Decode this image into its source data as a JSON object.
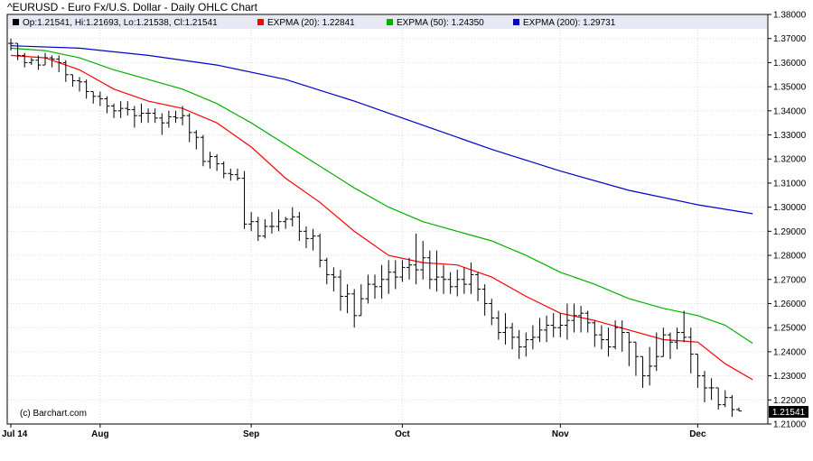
{
  "chart_data": {
    "type": "line",
    "title": "^EURUSD - Euro Fx/U.S. Dollar - Daily OHLC Chart",
    "legend": [
      {
        "label": "Op:1.21541, Hi:1.21693, Lo:1.21538, Cl:1.21541",
        "color": "#000000"
      },
      {
        "label": "EXPMA (20): 1.22841",
        "color": "#ff0000"
      },
      {
        "label": "EXPMA (50): 1.24350",
        "color": "#00b000"
      },
      {
        "label": "EXPMA (200): 1.29731",
        "color": "#0000cc"
      }
    ],
    "legend_placement": "top-left",
    "credit": "(c) Barchart.com",
    "last_value_label": "1.21541",
    "xlabel": "",
    "ylabel": "",
    "ylim": [
      1.21,
      1.38
    ],
    "y_ticks": [
      "1.21000",
      "1.22000",
      "1.23000",
      "1.24000",
      "1.25000",
      "1.26000",
      "1.27000",
      "1.28000",
      "1.29000",
      "1.30000",
      "1.31000",
      "1.32000",
      "1.33000",
      "1.34000",
      "1.35000",
      "1.36000",
      "1.37000",
      "1.38000"
    ],
    "x_ticks": [
      {
        "label": "Jul 14",
        "index": 0
      },
      {
        "label": "Aug",
        "index": 13
      },
      {
        "label": "Sep",
        "index": 35
      },
      {
        "label": "Oct",
        "index": 57
      },
      {
        "label": "Nov",
        "index": 80
      },
      {
        "label": "Dec",
        "index": 100
      }
    ],
    "grid": true,
    "bars_close": [
      1.368,
      1.363,
      1.36,
      1.361,
      1.359,
      1.362,
      1.3615,
      1.36,
      1.355,
      1.3525,
      1.352,
      1.348,
      1.346,
      1.345,
      1.342,
      1.34,
      1.341,
      1.3405,
      1.338,
      1.339,
      1.339,
      1.337,
      1.335,
      1.3375,
      1.337,
      1.338,
      1.331,
      1.329,
      1.319,
      1.321,
      1.318,
      1.314,
      1.3135,
      1.312,
      1.293,
      1.294,
      1.288,
      1.292,
      1.292,
      1.294,
      1.295,
      1.296,
      1.29,
      1.287,
      1.288,
      1.278,
      1.272,
      1.271,
      1.263,
      1.264,
      1.255,
      1.262,
      1.268,
      1.267,
      1.27,
      1.273,
      1.271,
      1.275,
      1.276,
      1.274,
      1.279,
      1.27,
      1.271,
      1.27,
      1.267,
      1.27,
      1.268,
      1.272,
      1.266,
      1.26,
      1.254,
      1.248,
      1.25,
      1.246,
      1.242,
      1.245,
      1.246,
      1.249,
      1.251,
      1.25,
      1.251,
      1.253,
      1.255,
      1.256,
      1.252,
      1.247,
      1.245,
      1.242,
      1.25,
      1.248,
      1.244,
      1.238,
      1.23,
      1.234,
      1.238,
      1.247,
      1.244,
      1.248,
      1.246,
      1.239,
      1.23,
      1.225,
      1.225,
      1.218,
      1.221,
      1.216,
      1.2154
    ],
    "bars_high": [
      1.37,
      1.368,
      1.364,
      1.362,
      1.363,
      1.364,
      1.363,
      1.363,
      1.361,
      1.354,
      1.354,
      1.353,
      1.348,
      1.348,
      1.346,
      1.343,
      1.344,
      1.344,
      1.342,
      1.343,
      1.341,
      1.341,
      1.339,
      1.34,
      1.34,
      1.342,
      1.339,
      1.332,
      1.33,
      1.323,
      1.322,
      1.319,
      1.316,
      1.316,
      1.315,
      1.298,
      1.296,
      1.295,
      1.298,
      1.299,
      1.296,
      1.3,
      1.298,
      1.292,
      1.291,
      1.289,
      1.279,
      1.275,
      1.274,
      1.268,
      1.266,
      1.268,
      1.272,
      1.272,
      1.276,
      1.278,
      1.278,
      1.278,
      1.279,
      1.289,
      1.286,
      1.282,
      1.282,
      1.276,
      1.273,
      1.274,
      1.275,
      1.277,
      1.273,
      1.268,
      1.262,
      1.257,
      1.256,
      1.252,
      1.249,
      1.248,
      1.251,
      1.254,
      1.255,
      1.256,
      1.256,
      1.26,
      1.26,
      1.259,
      1.257,
      1.253,
      1.251,
      1.25,
      1.253,
      1.253,
      1.248,
      1.244,
      1.238,
      1.242,
      1.248,
      1.25,
      1.248,
      1.25,
      1.257,
      1.25,
      1.235,
      1.232,
      1.229,
      1.225,
      1.224,
      1.222,
      1.2169
    ],
    "bars_low": [
      1.365,
      1.361,
      1.358,
      1.359,
      1.357,
      1.359,
      1.358,
      1.356,
      1.352,
      1.35,
      1.348,
      1.345,
      1.343,
      1.342,
      1.339,
      1.337,
      1.337,
      1.338,
      1.333,
      1.335,
      1.335,
      1.335,
      1.33,
      1.333,
      1.335,
      1.334,
      1.327,
      1.324,
      1.317,
      1.316,
      1.315,
      1.312,
      1.311,
      1.311,
      1.291,
      1.29,
      1.286,
      1.287,
      1.289,
      1.29,
      1.291,
      1.292,
      1.286,
      1.283,
      1.282,
      1.275,
      1.268,
      1.265,
      1.257,
      1.256,
      1.25,
      1.255,
      1.26,
      1.262,
      1.262,
      1.264,
      1.266,
      1.269,
      1.27,
      1.268,
      1.27,
      1.266,
      1.265,
      1.264,
      1.264,
      1.263,
      1.264,
      1.264,
      1.261,
      1.255,
      1.251,
      1.245,
      1.243,
      1.241,
      1.237,
      1.238,
      1.241,
      1.244,
      1.244,
      1.246,
      1.246,
      1.245,
      1.248,
      1.248,
      1.248,
      1.242,
      1.241,
      1.238,
      1.241,
      1.24,
      1.234,
      1.23,
      1.225,
      1.226,
      1.232,
      1.238,
      1.237,
      1.241,
      1.244,
      1.231,
      1.225,
      1.219,
      1.22,
      1.216,
      1.217,
      1.213,
      1.2154
    ],
    "series": [
      {
        "name": "EXPMA (20)",
        "color": "#ff0000",
        "values": [
          [
            0,
            1.363
          ],
          [
            5,
            1.362
          ],
          [
            10,
            1.357
          ],
          [
            15,
            1.349
          ],
          [
            20,
            1.344
          ],
          [
            25,
            1.341
          ],
          [
            30,
            1.335
          ],
          [
            35,
            1.325
          ],
          [
            40,
            1.312
          ],
          [
            45,
            1.302
          ],
          [
            50,
            1.29
          ],
          [
            55,
            1.28
          ],
          [
            60,
            1.277
          ],
          [
            65,
            1.276
          ],
          [
            70,
            1.271
          ],
          [
            75,
            1.263
          ],
          [
            80,
            1.256
          ],
          [
            85,
            1.253
          ],
          [
            90,
            1.249
          ],
          [
            95,
            1.245
          ],
          [
            100,
            1.244
          ],
          [
            104,
            1.235
          ],
          [
            108,
            1.2284
          ]
        ]
      },
      {
        "name": "EXPMA (50)",
        "color": "#00b000",
        "values": [
          [
            0,
            1.366
          ],
          [
            5,
            1.365
          ],
          [
            10,
            1.362
          ],
          [
            15,
            1.357
          ],
          [
            20,
            1.353
          ],
          [
            25,
            1.349
          ],
          [
            30,
            1.343
          ],
          [
            35,
            1.335
          ],
          [
            40,
            1.326
          ],
          [
            45,
            1.317
          ],
          [
            50,
            1.308
          ],
          [
            55,
            1.3
          ],
          [
            60,
            1.294
          ],
          [
            65,
            1.29
          ],
          [
            70,
            1.286
          ],
          [
            75,
            1.28
          ],
          [
            80,
            1.273
          ],
          [
            85,
            1.268
          ],
          [
            90,
            1.262
          ],
          [
            95,
            1.258
          ],
          [
            100,
            1.255
          ],
          [
            104,
            1.251
          ],
          [
            108,
            1.2435
          ]
        ]
      },
      {
        "name": "EXPMA (200)",
        "color": "#0000cc",
        "values": [
          [
            0,
            1.367
          ],
          [
            10,
            1.366
          ],
          [
            20,
            1.363
          ],
          [
            30,
            1.359
          ],
          [
            40,
            1.353
          ],
          [
            50,
            1.344
          ],
          [
            60,
            1.334
          ],
          [
            70,
            1.324
          ],
          [
            80,
            1.315
          ],
          [
            90,
            1.307
          ],
          [
            100,
            1.301
          ],
          [
            108,
            1.2973
          ]
        ]
      }
    ]
  }
}
